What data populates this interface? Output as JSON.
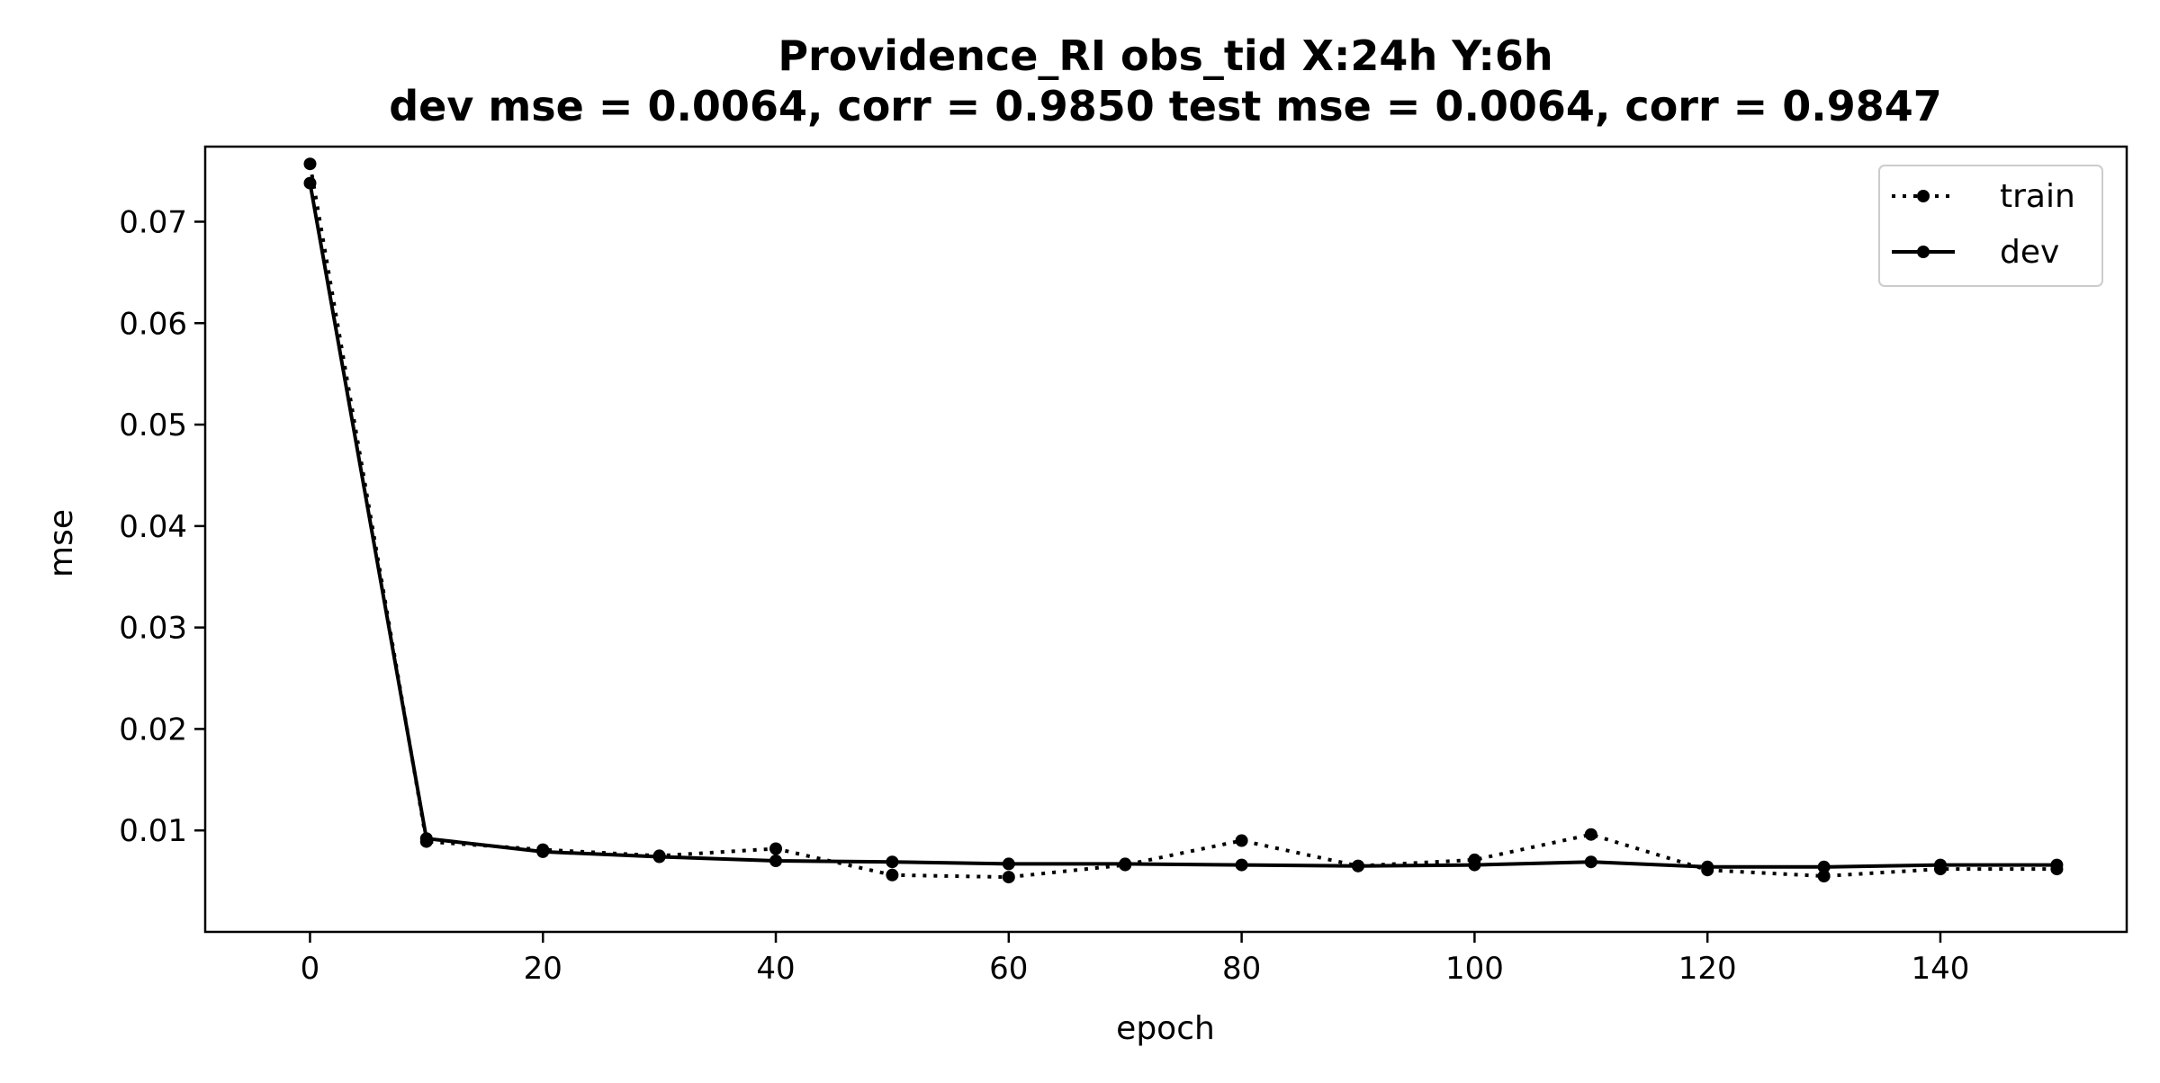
{
  "chart_data": {
    "type": "line",
    "title": "Providence_RI   obs_tid   X:24h   Y:6h",
    "subtitle": "dev mse = 0.0064, corr = 0.9850   test mse = 0.0064, corr = 0.9847",
    "xlabel": "epoch",
    "ylabel": "mse",
    "xlim": [
      -9,
      156
    ],
    "ylim": [
      0.0,
      0.0774
    ],
    "xticks": [
      0,
      20,
      40,
      60,
      80,
      100,
      120,
      140
    ],
    "yticks": [
      0.01,
      0.02,
      0.03,
      0.04,
      0.05,
      0.06,
      0.07
    ],
    "grid": false,
    "legend_position": "top-right",
    "x": [
      0,
      10,
      20,
      30,
      40,
      50,
      60,
      70,
      80,
      90,
      100,
      110,
      120,
      130,
      140,
      150
    ],
    "series": [
      {
        "name": "train",
        "style": "dotted",
        "color": "#000000",
        "values": [
          0.0757,
          0.0089,
          0.0081,
          0.0075,
          0.0082,
          0.0056,
          0.0054,
          0.0066,
          0.009,
          0.0065,
          0.0071,
          0.0096,
          0.0061,
          0.0055,
          0.0062,
          0.0062
        ]
      },
      {
        "name": "dev",
        "style": "solid",
        "color": "#000000",
        "values": [
          0.0738,
          0.0092,
          0.0079,
          0.0074,
          0.007,
          0.0069,
          0.0067,
          0.0067,
          0.0066,
          0.0065,
          0.0066,
          0.0069,
          0.0064,
          0.0064,
          0.0066,
          0.0066
        ]
      }
    ]
  }
}
